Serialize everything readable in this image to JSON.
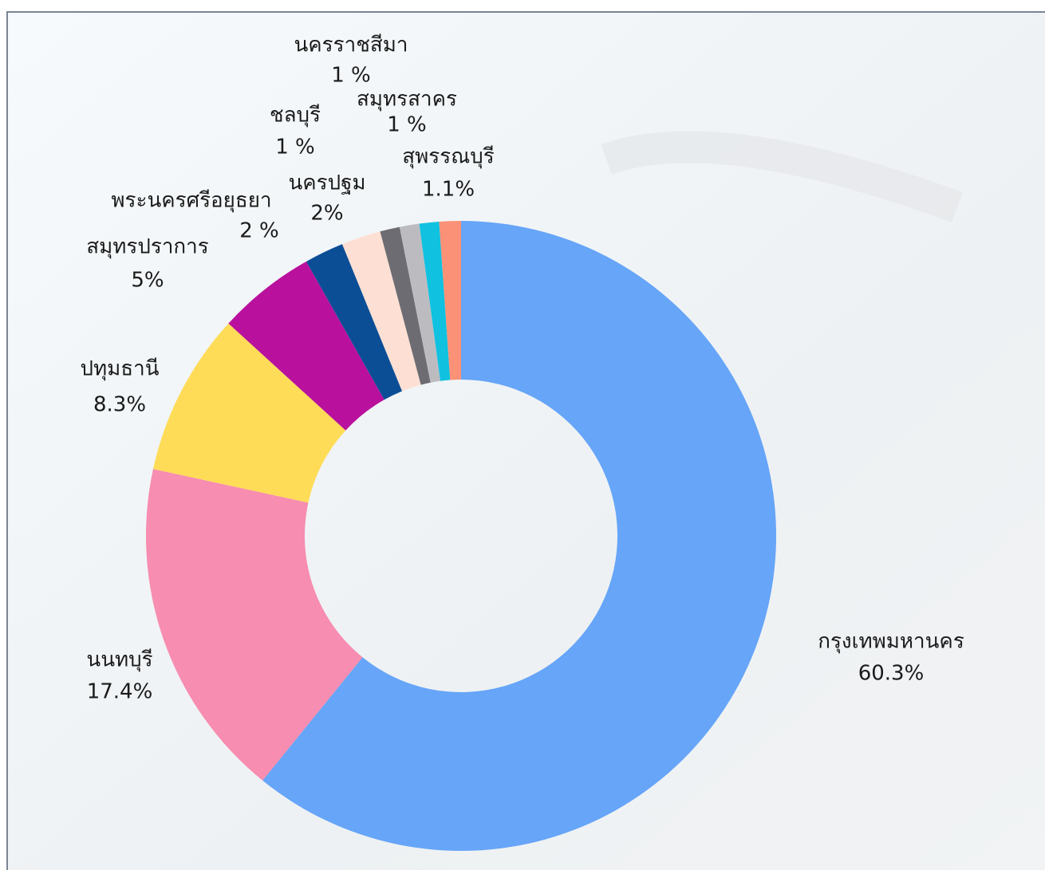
{
  "chart_data": {
    "type": "donut",
    "categories": [
      "กรุงเทพมหานคร",
      "นนทบุรี",
      "ปทุมธานี",
      "สมุทรปราการ",
      "พระนครศรีอยุธยา",
      "นครปฐม",
      "ชลบุรี",
      "นครราชสีมา",
      "สมุทรสาคร",
      "สุพรรณบุรี"
    ],
    "values": [
      60.3,
      17.4,
      8.3,
      5,
      2,
      2,
      1,
      1,
      1,
      1.1
    ],
    "value_labels": [
      "60.3%",
      "17.4%",
      "8.3%",
      "5%",
      "2 %",
      "2%",
      "1 %",
      "1 %",
      "1 %",
      "1.1%"
    ],
    "colors": [
      "#66a5f8",
      "#f78db0",
      "#ffdc58",
      "#b9119d",
      "#0b4e96",
      "#fde0d3",
      "#6d6c72",
      "#bcbcc0",
      "#10c1e0",
      "#fb9176"
    ]
  }
}
